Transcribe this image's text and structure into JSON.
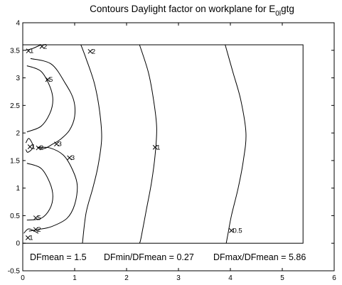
{
  "chart_data": {
    "type": "contour",
    "title": {
      "prefix": "Contours Daylight factor on workplane  for E",
      "subscript": "0l",
      "suffix": "gtg"
    },
    "xlim": [
      0,
      6
    ],
    "ylim": [
      -0.5,
      4
    ],
    "x_ticks": [
      "0",
      "1",
      "2",
      "3",
      "4",
      "5",
      "6"
    ],
    "y_ticks": [
      "-0.5",
      "0",
      "0.5",
      "1",
      "1.5",
      "2",
      "2.5",
      "3",
      "3.5",
      "4"
    ],
    "grid": false,
    "room_outline": {
      "x0": 0,
      "x1": 5.4,
      "y0": 0,
      "y1": 3.6
    },
    "contours": [
      {
        "level": 5,
        "points": [
          [
            0.08,
            3.22
          ],
          [
            0.35,
            3.12
          ],
          [
            0.52,
            2.85
          ],
          [
            0.58,
            2.6
          ],
          [
            0.52,
            2.35
          ],
          [
            0.35,
            2.12
          ],
          [
            0.08,
            2.02
          ]
        ]
      },
      {
        "level": 5,
        "points": [
          [
            0.08,
            1.45
          ],
          [
            0.35,
            1.36
          ],
          [
            0.52,
            1.1
          ],
          [
            0.58,
            0.85
          ],
          [
            0.52,
            0.62
          ],
          [
            0.35,
            0.45
          ],
          [
            0.08,
            0.42
          ]
        ]
      },
      {
        "level": 3,
        "points": [
          [
            0.15,
            3.35
          ],
          [
            0.55,
            3.25
          ],
          [
            0.82,
            2.9
          ],
          [
            0.98,
            2.6
          ],
          [
            1.0,
            2.3
          ],
          [
            0.9,
            2.05
          ],
          [
            0.72,
            1.88
          ],
          [
            0.58,
            1.8
          ],
          [
            0.42,
            1.72
          ],
          [
            0.28,
            1.74
          ]
        ]
      },
      {
        "level": 3,
        "points": [
          [
            0.28,
            1.74
          ],
          [
            0.52,
            1.73
          ],
          [
            0.78,
            1.6
          ],
          [
            0.95,
            1.35
          ],
          [
            1.05,
            1.05
          ],
          [
            1.0,
            0.7
          ],
          [
            0.85,
            0.45
          ],
          [
            0.55,
            0.3
          ],
          [
            0.3,
            0.25
          ],
          [
            0.12,
            0.22
          ]
        ]
      },
      {
        "level": 2,
        "points": [
          [
            0.04,
            3.5
          ],
          [
            0.18,
            3.53
          ],
          [
            0.35,
            3.6
          ]
        ]
      },
      {
        "level": 2,
        "points": [
          [
            0.06,
            1.82
          ],
          [
            0.12,
            1.9
          ],
          [
            0.2,
            1.75
          ],
          [
            0.1,
            1.65
          ],
          [
            0.06,
            1.7
          ]
        ]
      },
      {
        "level": 2,
        "points": [
          [
            0.02,
            0.18
          ],
          [
            0.12,
            0.26
          ],
          [
            0.3,
            0.18
          ]
        ]
      },
      {
        "level": 2,
        "points": [
          [
            1.12,
            3.6
          ],
          [
            1.22,
            3.35
          ],
          [
            1.38,
            2.9
          ],
          [
            1.48,
            2.4
          ],
          [
            1.52,
            1.9
          ],
          [
            1.45,
            1.4
          ],
          [
            1.35,
            1.0
          ],
          [
            1.22,
            0.55
          ],
          [
            1.15,
            0.0
          ]
        ]
      },
      {
        "level": 1,
        "points": [
          [
            2.25,
            3.6
          ],
          [
            2.42,
            3.1
          ],
          [
            2.52,
            2.6
          ],
          [
            2.58,
            2.1
          ],
          [
            2.55,
            1.6
          ],
          [
            2.48,
            1.1
          ],
          [
            2.38,
            0.6
          ],
          [
            2.28,
            0.1
          ],
          [
            2.25,
            0.0
          ]
        ]
      },
      {
        "level": 0.5,
        "points": [
          [
            3.9,
            3.6
          ],
          [
            4.05,
            3.1
          ],
          [
            4.2,
            2.6
          ],
          [
            4.3,
            2.0
          ],
          [
            4.25,
            1.5
          ],
          [
            4.15,
            1.0
          ],
          [
            4.02,
            0.5
          ],
          [
            3.95,
            0.15
          ],
          [
            3.92,
            0.0
          ]
        ]
      }
    ],
    "contour_labels": [
      {
        "text": "1",
        "x": 0.11,
        "y": 3.49
      },
      {
        "text": "2",
        "x": 0.37,
        "y": 3.57
      },
      {
        "text": "2",
        "x": 1.3,
        "y": 3.48
      },
      {
        "text": "5",
        "x": 0.48,
        "y": 2.97
      },
      {
        "text": "1",
        "x": 0.14,
        "y": 1.75
      },
      {
        "text": "2",
        "x": 0.3,
        "y": 1.73
      },
      {
        "text": "3",
        "x": 0.65,
        "y": 1.8
      },
      {
        "text": "3",
        "x": 0.9,
        "y": 1.55
      },
      {
        "text": "1",
        "x": 2.55,
        "y": 1.74
      },
      {
        "text": "5",
        "x": 0.25,
        "y": 0.46
      },
      {
        "text": "2",
        "x": 0.25,
        "y": 0.25
      },
      {
        "text": "1",
        "x": 0.1,
        "y": 0.1
      },
      {
        "text": "0.5",
        "x": 4.02,
        "y": 0.23
      }
    ],
    "stats": [
      {
        "label": "DFmean =",
        "value": "1.5"
      },
      {
        "label": "DFmin/DFmean =",
        "value": "0.27"
      },
      {
        "label": "DFmax/DFmean =",
        "value": "5.86"
      }
    ]
  }
}
